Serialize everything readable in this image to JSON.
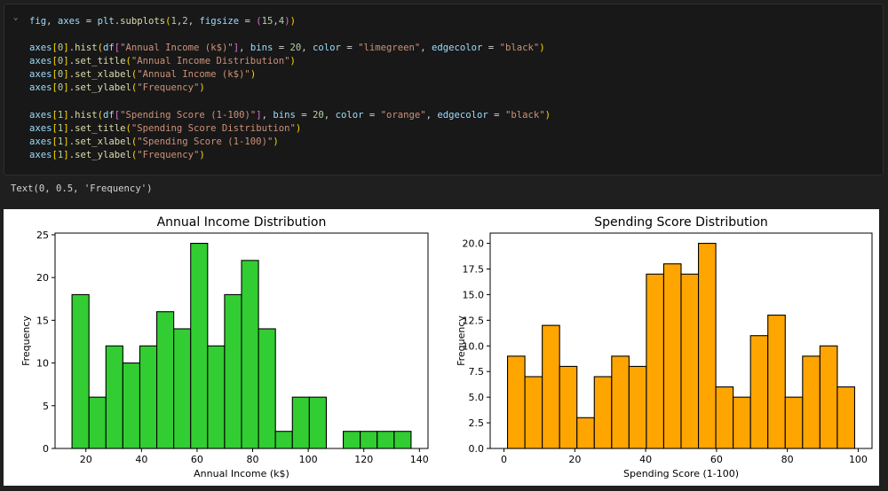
{
  "code_cell": {
    "lines": [
      [
        [
          "fig",
          "var"
        ],
        [
          ", ",
          "op"
        ],
        [
          "axes",
          "var"
        ],
        [
          " = ",
          "op"
        ],
        [
          "plt",
          "var"
        ],
        [
          ".",
          "op"
        ],
        [
          "subplots",
          "fn"
        ],
        [
          "(",
          "brk"
        ],
        [
          "1",
          "num"
        ],
        [
          ",",
          "op"
        ],
        [
          "2",
          "num"
        ],
        [
          ", ",
          "op"
        ],
        [
          "figsize",
          "var"
        ],
        [
          " = ",
          "op"
        ],
        [
          "(",
          "brk2"
        ],
        [
          "15",
          "num"
        ],
        [
          ",",
          "op"
        ],
        [
          "4",
          "num"
        ],
        [
          ")",
          "brk2"
        ],
        [
          ")",
          "brk"
        ]
      ],
      [],
      [
        [
          "axes",
          "var"
        ],
        [
          "[",
          "brk"
        ],
        [
          "0",
          "num"
        ],
        [
          "]",
          "brk"
        ],
        [
          ".",
          "op"
        ],
        [
          "hist",
          "fn"
        ],
        [
          "(",
          "brk"
        ],
        [
          "df",
          "var"
        ],
        [
          "[",
          "brk2"
        ],
        [
          "\"Annual Income (k$)\"",
          "str"
        ],
        [
          "]",
          "brk2"
        ],
        [
          ", ",
          "op"
        ],
        [
          "bins",
          "var"
        ],
        [
          " = ",
          "op"
        ],
        [
          "20",
          "num"
        ],
        [
          ", ",
          "op"
        ],
        [
          "color",
          "var"
        ],
        [
          " = ",
          "op"
        ],
        [
          "\"limegreen\"",
          "str"
        ],
        [
          ", ",
          "op"
        ],
        [
          "edgecolor",
          "var"
        ],
        [
          " = ",
          "op"
        ],
        [
          "\"black\"",
          "str"
        ],
        [
          ")",
          "brk"
        ]
      ],
      [
        [
          "axes",
          "var"
        ],
        [
          "[",
          "brk"
        ],
        [
          "0",
          "num"
        ],
        [
          "]",
          "brk"
        ],
        [
          ".",
          "op"
        ],
        [
          "set_title",
          "fn"
        ],
        [
          "(",
          "brk"
        ],
        [
          "\"Annual Income Distribution\"",
          "str"
        ],
        [
          ")",
          "brk"
        ]
      ],
      [
        [
          "axes",
          "var"
        ],
        [
          "[",
          "brk"
        ],
        [
          "0",
          "num"
        ],
        [
          "]",
          "brk"
        ],
        [
          ".",
          "op"
        ],
        [
          "set_xlabel",
          "fn"
        ],
        [
          "(",
          "brk"
        ],
        [
          "\"Annual Income (k$)\"",
          "str"
        ],
        [
          ")",
          "brk"
        ]
      ],
      [
        [
          "axes",
          "var"
        ],
        [
          "[",
          "brk"
        ],
        [
          "0",
          "num"
        ],
        [
          "]",
          "brk"
        ],
        [
          ".",
          "op"
        ],
        [
          "set_ylabel",
          "fn"
        ],
        [
          "(",
          "brk"
        ],
        [
          "\"Frequency\"",
          "str"
        ],
        [
          ")",
          "brk"
        ]
      ],
      [],
      [
        [
          "axes",
          "var"
        ],
        [
          "[",
          "brk"
        ],
        [
          "1",
          "num"
        ],
        [
          "]",
          "brk"
        ],
        [
          ".",
          "op"
        ],
        [
          "hist",
          "fn"
        ],
        [
          "(",
          "brk"
        ],
        [
          "df",
          "var"
        ],
        [
          "[",
          "brk2"
        ],
        [
          "\"Spending Score (1-100)\"",
          "str"
        ],
        [
          "]",
          "brk2"
        ],
        [
          ", ",
          "op"
        ],
        [
          "bins",
          "var"
        ],
        [
          " = ",
          "op"
        ],
        [
          "20",
          "num"
        ],
        [
          ", ",
          "op"
        ],
        [
          "color",
          "var"
        ],
        [
          " = ",
          "op"
        ],
        [
          "\"orange\"",
          "str"
        ],
        [
          ", ",
          "op"
        ],
        [
          "edgecolor",
          "var"
        ],
        [
          " = ",
          "op"
        ],
        [
          "\"black\"",
          "str"
        ],
        [
          ")",
          "brk"
        ]
      ],
      [
        [
          "axes",
          "var"
        ],
        [
          "[",
          "brk"
        ],
        [
          "1",
          "num"
        ],
        [
          "]",
          "brk"
        ],
        [
          ".",
          "op"
        ],
        [
          "set_title",
          "fn"
        ],
        [
          "(",
          "brk"
        ],
        [
          "\"Spending Score Distribution\"",
          "str"
        ],
        [
          ")",
          "brk"
        ]
      ],
      [
        [
          "axes",
          "var"
        ],
        [
          "[",
          "brk"
        ],
        [
          "1",
          "num"
        ],
        [
          "]",
          "brk"
        ],
        [
          ".",
          "op"
        ],
        [
          "set_xlabel",
          "fn"
        ],
        [
          "(",
          "brk"
        ],
        [
          "\"Spending Score (1-100)\"",
          "str"
        ],
        [
          ")",
          "brk"
        ]
      ],
      [
        [
          "axes",
          "var"
        ],
        [
          "[",
          "brk"
        ],
        [
          "1",
          "num"
        ],
        [
          "]",
          "brk"
        ],
        [
          ".",
          "op"
        ],
        [
          "set_ylabel",
          "fn"
        ],
        [
          "(",
          "brk"
        ],
        [
          "\"Frequency\"",
          "str"
        ],
        [
          ")",
          "brk"
        ]
      ]
    ]
  },
  "output": {
    "text": "Text(0, 0.5, 'Frequency')"
  },
  "chart_data": [
    {
      "type": "bar",
      "title": "Annual Income Distribution",
      "xlabel": "Annual Income (k$)",
      "ylabel": "Frequency",
      "bin_edges": [
        15,
        21.1,
        27.2,
        33.3,
        39.4,
        45.5,
        51.6,
        57.7,
        63.8,
        69.9,
        76,
        82.1,
        88.2,
        94.3,
        100.4,
        106.5,
        112.6,
        118.7,
        124.8,
        130.9,
        137
      ],
      "values": [
        18,
        6,
        12,
        10,
        12,
        16,
        14,
        24,
        12,
        18,
        22,
        14,
        2,
        6,
        6,
        0,
        2,
        2,
        2,
        2
      ],
      "xlim": [
        8.9,
        143.1
      ],
      "ylim": [
        0,
        25.2
      ],
      "xticks": [
        20,
        40,
        60,
        80,
        100,
        120,
        140
      ],
      "yticks": [
        0,
        5,
        10,
        15,
        20,
        25
      ],
      "color": "#32cd32",
      "edgecolor": "#000000"
    },
    {
      "type": "bar",
      "title": "Spending Score Distribution",
      "xlabel": "Spending Score (1-100)",
      "ylabel": "Frequency",
      "bin_edges": [
        1,
        5.9,
        10.8,
        15.7,
        20.6,
        25.5,
        30.4,
        35.3,
        40.2,
        45.1,
        50,
        54.9,
        59.8,
        64.7,
        69.6,
        74.5,
        79.4,
        84.3,
        89.2,
        94.1,
        99
      ],
      "values": [
        9,
        7,
        12,
        8,
        3,
        7,
        9,
        8,
        17,
        18,
        17,
        20,
        6,
        5,
        11,
        13,
        5,
        9,
        10,
        6
      ],
      "xlim": [
        -3.9,
        103.9
      ],
      "ylim": [
        0,
        21
      ],
      "xticks": [
        0,
        20,
        40,
        60,
        80,
        100
      ],
      "yticks": [
        0.0,
        2.5,
        5.0,
        7.5,
        10.0,
        12.5,
        15.0,
        17.5,
        20.0
      ],
      "ytick_labels": [
        "0.0",
        "2.5",
        "5.0",
        "7.5",
        "10.0",
        "12.5",
        "15.0",
        "17.5",
        "20.0"
      ],
      "color": "#ffa500",
      "edgecolor": "#000000"
    }
  ],
  "colors": {
    "cell_background": "#181818",
    "page_background": "#1f1f1f"
  }
}
